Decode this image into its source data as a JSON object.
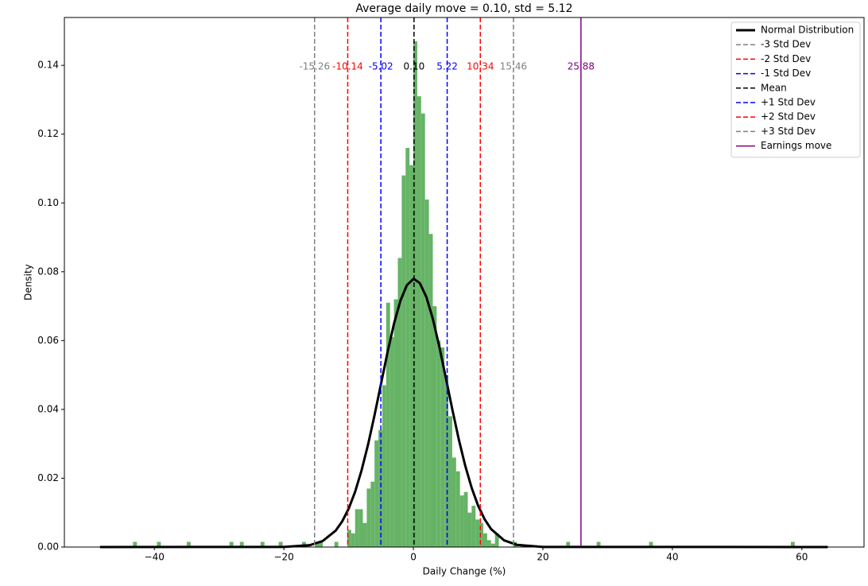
{
  "chart_data": {
    "type": "histogram",
    "title": "Average daily move = 0.10,  std = 5.12",
    "xlabel": "Daily Change (%)",
    "ylabel": "Density",
    "color": "#66b366",
    "bins": [
      -48.4,
      -43.3,
      -42.7,
      -39.6,
      -39.0,
      -35.0,
      -34.4,
      -28.4,
      -27.8,
      -26.8,
      -26.2,
      -23.6,
      -23.0,
      -20.8,
      -20.2,
      -17.2,
      -16.6,
      -15.2,
      -14.6,
      -14.0,
      -12.2,
      -11.6,
      -10.2,
      -9.6,
      -9.0,
      -8.4,
      -7.8,
      -7.2,
      -6.6,
      -6.0,
      -5.4,
      -4.8,
      -4.2,
      -3.6,
      -3.0,
      -2.4,
      -1.8,
      -1.2,
      -0.6,
      0,
      0.6,
      1.2,
      1.8,
      2.4,
      3.0,
      3.6,
      4.2,
      4.8,
      5.4,
      6.0,
      6.6,
      7.2,
      7.8,
      8.4,
      9.0,
      9.6,
      10.2,
      10.8,
      11.4,
      12.0,
      12.6,
      13.2,
      15.4,
      16.0,
      23.6,
      24.2,
      28.3,
      28.9,
      36.4,
      37.0,
      58.3,
      58.9,
      64.0
    ],
    "values": [
      0,
      0.0015,
      0,
      0.0015,
      0,
      0.0015,
      0,
      0.0015,
      0,
      0.0015,
      0,
      0.0015,
      0,
      0.0015,
      0,
      0.0015,
      0,
      0.0015,
      0.0015,
      0,
      0.0015,
      0,
      0.005,
      0.004,
      0.011,
      0.011,
      0.007,
      0.017,
      0.019,
      0.031,
      0.034,
      0.047,
      0.071,
      0.061,
      0.072,
      0.084,
      0.108,
      0.116,
      0.111,
      0.147,
      0.131,
      0.126,
      0.101,
      0.091,
      0.07,
      0.06,
      0.058,
      0.05,
      0.038,
      0.026,
      0.022,
      0.015,
      0.016,
      0.01,
      0.012,
      0.008,
      0.007,
      0.004,
      0.002,
      0.001,
      0.004,
      0,
      0.0015,
      0,
      0.0015,
      0,
      0.0015,
      0,
      0.0015,
      0,
      0.0015,
      0
    ],
    "curve": {
      "name": "Normal Distribution",
      "color": "#000000",
      "x": [
        -48.4,
        -20,
        -16,
        -14,
        -12,
        -11,
        -10,
        -9,
        -8,
        -7,
        -6,
        -5,
        -4,
        -3,
        -2,
        -1,
        0,
        0.1,
        1,
        2,
        3,
        4,
        5,
        6,
        7,
        8,
        9,
        10,
        11,
        12,
        14,
        16,
        20,
        64
      ],
      "y": [
        0,
        4e-05,
        0.00055,
        0.00176,
        0.00478,
        0.00743,
        0.01113,
        0.01606,
        0.0223,
        0.02977,
        0.03831,
        0.04743,
        0.05651,
        0.06487,
        0.07161,
        0.07612,
        0.07788,
        0.0779,
        0.0767,
        0.07271,
        0.06636,
        0.05828,
        0.04928,
        0.04012,
        0.0314,
        0.02369,
        0.0172,
        0.012,
        0.00808,
        0.00523,
        0.00195,
        0.00063,
        4e-05,
        0
      ]
    },
    "vlines": [
      {
        "name": "-3 Std Dev",
        "value": -15.26,
        "label": "-15.26",
        "color": "#808080",
        "dashed": true
      },
      {
        "name": "-2 Std Dev",
        "value": -10.14,
        "label": "-10.14",
        "color": "#ff0000",
        "dashed": true
      },
      {
        "name": "-1 Std Dev",
        "value": -5.02,
        "label": "-5.02",
        "color": "#0000ff",
        "dashed": true
      },
      {
        "name": "Mean",
        "value": 0.1,
        "label": "0.10",
        "color": "#000000",
        "dashed": true
      },
      {
        "name": "+1 Std Dev",
        "value": 5.22,
        "label": "5.22",
        "color": "#0000ff",
        "dashed": true
      },
      {
        "name": "+2 Std Dev",
        "value": 10.34,
        "label": "10.34",
        "color": "#ff0000",
        "dashed": true
      },
      {
        "name": "+3 Std Dev",
        "value": 15.46,
        "label": "15.46",
        "color": "#808080",
        "dashed": true
      },
      {
        "name": "Earnings move",
        "value": 25.88,
        "label": "25.88",
        "color": "#800080",
        "dashed": false
      }
    ],
    "xlim": [
      -53.9,
      69.6
    ],
    "ylim": [
      0,
      0.1539
    ],
    "xticks": [
      {
        "value": -40,
        "label": "−40"
      },
      {
        "value": -20,
        "label": "−20"
      },
      0,
      20,
      40,
      60
    ],
    "yticks": [
      {
        "value": 0,
        "label": "0.00"
      },
      {
        "value": 0.02,
        "label": "0.02"
      },
      {
        "value": 0.04,
        "label": "0.04"
      },
      {
        "value": 0.06,
        "label": "0.06"
      },
      {
        "value": 0.08,
        "label": "0.08"
      },
      {
        "value": 0.1,
        "label": "0.10"
      },
      {
        "value": 0.12,
        "label": "0.12"
      },
      {
        "value": 0.14,
        "label": "0.14"
      }
    ],
    "legend": "upper right"
  }
}
